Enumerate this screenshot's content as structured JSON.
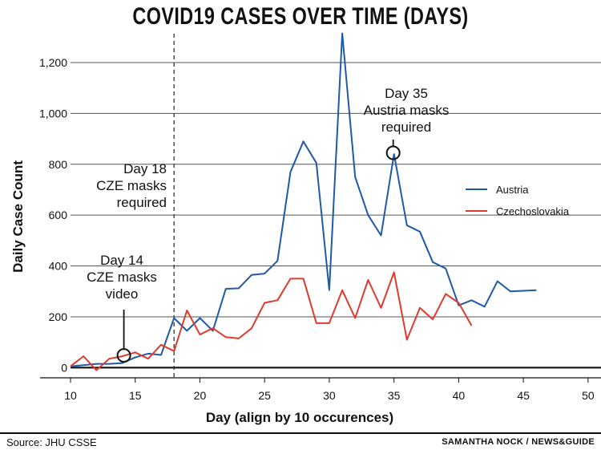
{
  "chart_data": {
    "type": "line",
    "title": "COVID19 CASES OVER TIME (DAYS)",
    "xlabel": "Day (align by 10 occurences)",
    "ylabel": "Daily Case Count",
    "xlim": [
      10,
      51
    ],
    "ylim": [
      -40,
      1320
    ],
    "xticks": [
      10,
      15,
      20,
      25,
      30,
      35,
      40,
      45,
      50
    ],
    "yticks": [
      0,
      200,
      400,
      600,
      800,
      1000,
      1200
    ],
    "ytick_labels": [
      "0",
      "200",
      "400",
      "600",
      "800",
      "1,000",
      "1,200"
    ],
    "grid": "horizontal",
    "legend_position": "right",
    "series": [
      {
        "name": "Austria",
        "color": "#1f5aa6",
        "x": [
          10,
          11,
          12,
          13,
          14,
          15,
          16,
          17,
          18,
          19,
          20,
          21,
          22,
          23,
          24,
          25,
          26,
          27,
          28,
          29,
          30,
          31,
          32,
          33,
          34,
          35,
          36,
          37,
          38,
          39,
          40,
          41,
          42,
          43,
          44,
          46
        ],
        "values": [
          5,
          10,
          15,
          15,
          18,
          40,
          55,
          50,
          195,
          145,
          195,
          145,
          310,
          312,
          365,
          370,
          420,
          770,
          890,
          805,
          305,
          1315,
          750,
          600,
          520,
          840,
          560,
          535,
          415,
          390,
          245,
          265,
          240,
          340,
          300,
          305
        ]
      },
      {
        "name": "Czechoslovakia",
        "color": "#e03a2f",
        "x": [
          10,
          11,
          12,
          13,
          14,
          15,
          16,
          17,
          18,
          19,
          20,
          21,
          22,
          23,
          24,
          25,
          26,
          27,
          28,
          29,
          30,
          31,
          32,
          33,
          34,
          35,
          36,
          37,
          38,
          39,
          40,
          41
        ],
        "values": [
          5,
          45,
          -10,
          35,
          45,
          60,
          35,
          90,
          65,
          225,
          130,
          155,
          120,
          115,
          155,
          255,
          265,
          350,
          350,
          175,
          175,
          305,
          195,
          345,
          235,
          375,
          110,
          235,
          190,
          290,
          255,
          165
        ]
      }
    ],
    "annotations": [
      {
        "id": "day18",
        "lines": [
          "Day 18",
          "CZE masks",
          "required"
        ],
        "x": 18
      },
      {
        "id": "day14",
        "lines": [
          "Day 14",
          "CZE masks",
          "video"
        ],
        "x": 14,
        "y": 45
      },
      {
        "id": "day35",
        "lines": [
          "Day 35",
          "Austria masks",
          "required"
        ],
        "x": 35,
        "y": 845
      }
    ]
  },
  "footer": {
    "source": "Source: JHU CSSE",
    "credit": "SAMANTHA NOCK / NEWS&GUIDE"
  }
}
